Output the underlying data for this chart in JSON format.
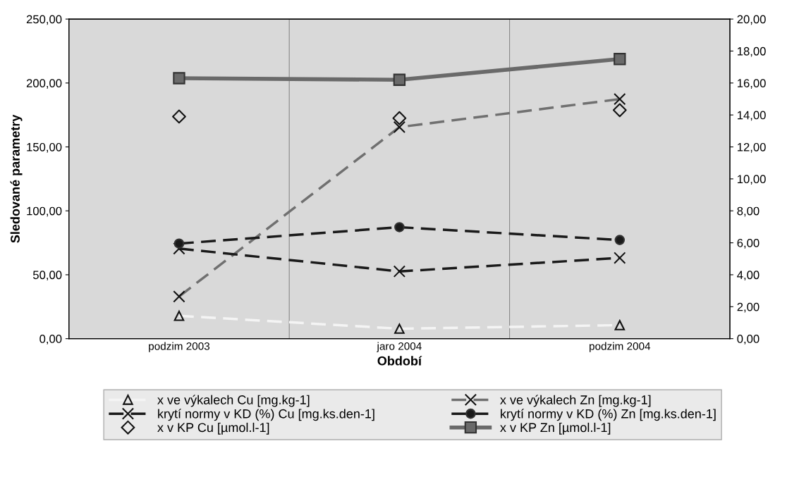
{
  "chart_data": {
    "type": "line",
    "xlabel": "Období",
    "ylabel": "Sledované parametry",
    "categories": [
      "podzim 2003",
      "jaro 2004",
      "podzim 2004"
    ],
    "ylim": [
      0,
      250
    ],
    "yticks": [
      {
        "value": 0,
        "label": "0,00"
      },
      {
        "value": 50,
        "label": "50,00"
      },
      {
        "value": 100,
        "label": "100,00"
      },
      {
        "value": 150,
        "label": "150,00"
      },
      {
        "value": 200,
        "label": "200,00"
      },
      {
        "value": 250,
        "label": "250,00"
      }
    ],
    "y2lim": [
      0,
      20
    ],
    "y2ticks": [
      {
        "value": 0,
        "label": "0,00"
      },
      {
        "value": 2,
        "label": "2,00"
      },
      {
        "value": 4,
        "label": "4,00"
      },
      {
        "value": 6,
        "label": "6,00"
      },
      {
        "value": 8,
        "label": "8,00"
      },
      {
        "value": 10,
        "label": "10,00"
      },
      {
        "value": 12,
        "label": "12,00"
      },
      {
        "value": 14,
        "label": "14,00"
      },
      {
        "value": 16,
        "label": "16,00"
      },
      {
        "value": 18,
        "label": "18,00"
      },
      {
        "value": 20,
        "label": "20,00"
      }
    ],
    "grid": "x",
    "legend": "bottom",
    "series": [
      {
        "name": "x ve výkalech Cu [mg.kg-1]",
        "color": "#f4f4f4",
        "marker": "triangle",
        "line_style": "dashed",
        "values": [
          17.9,
          7.8,
          10.6
        ]
      },
      {
        "name": "x ve výkalech Zn [mg.kg-1]",
        "color": "#707070",
        "marker": "cross",
        "line_style": "dashed",
        "values": [
          33.0,
          165.5,
          187.4
        ]
      },
      {
        "name": "krytí normy v KD (%) Cu [mg.ks.den-1]",
        "color": "#1a1a1a",
        "marker": "cross",
        "line_style": "dashed",
        "values": [
          70.5,
          52.6,
          63.2
        ]
      },
      {
        "name": "krytí normy v KD (%) Zn [mg.ks.den-1]",
        "color": "#1a1a1a",
        "marker": "circle",
        "line_style": "dashed",
        "values": [
          74.4,
          87.2,
          77.2
        ]
      },
      {
        "name": "x v KP Cu [µmol.l-1]",
        "color": "#111111",
        "type": "scatter",
        "marker": "diamond",
        "axis": "y2",
        "values": [
          13.9,
          13.8,
          14.3
        ]
      },
      {
        "name": "x v KP Zn [µmol.l-1]",
        "color": "#6a6a6a",
        "marker": "square",
        "line_style": "solid",
        "axis": "y2",
        "values": [
          16.3,
          16.2,
          17.5
        ]
      }
    ]
  }
}
